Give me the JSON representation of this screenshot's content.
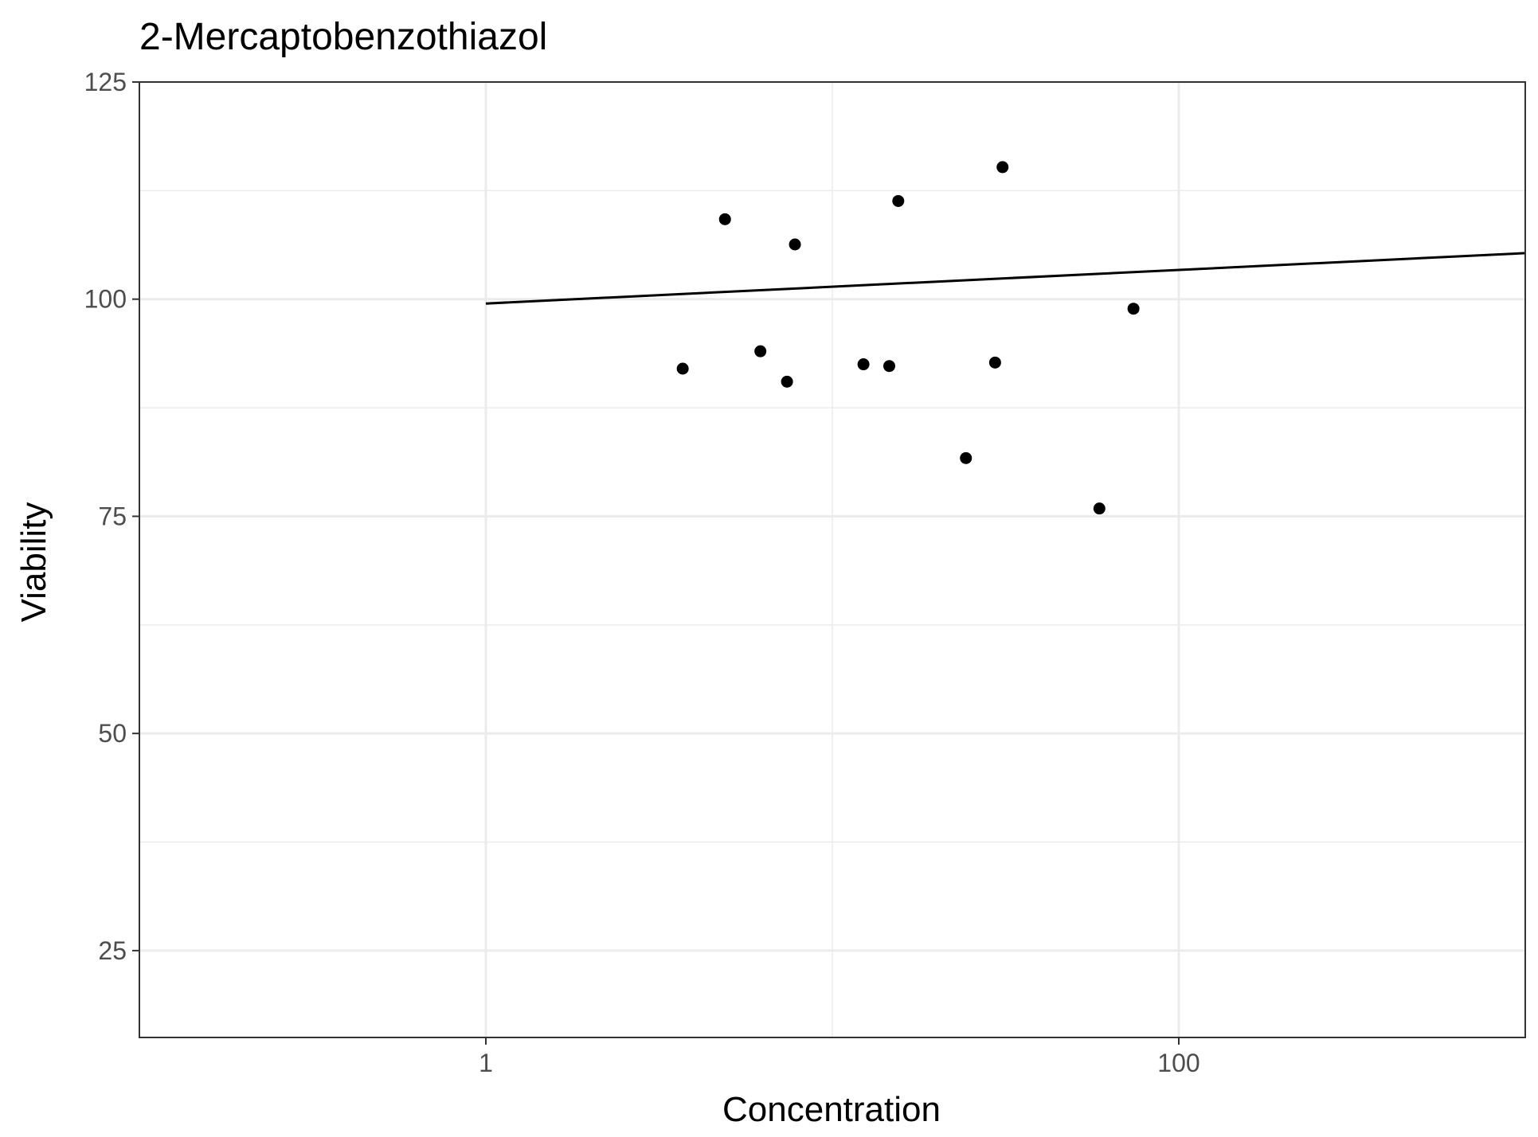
{
  "chart_data": {
    "type": "scatter",
    "title": "2-Mercaptobenzothiazol",
    "xlabel": "Concentration",
    "ylabel": "Viability",
    "x_scale": "log10",
    "xlim": [
      0.1,
      1000
    ],
    "ylim": [
      15,
      125
    ],
    "x_ticks": [
      1,
      100
    ],
    "x_tick_labels": [
      "1",
      "100"
    ],
    "y_ticks": [
      25,
      50,
      75,
      100,
      125
    ],
    "y_tick_labels": [
      "25",
      "50",
      "75",
      "100",
      "125"
    ],
    "grid": true,
    "legend": "none",
    "points": [
      {
        "x": 3.7,
        "y": 92.0
      },
      {
        "x": 4.9,
        "y": 109.2
      },
      {
        "x": 6.2,
        "y": 94.0
      },
      {
        "x": 7.4,
        "y": 90.5
      },
      {
        "x": 7.8,
        "y": 106.3
      },
      {
        "x": 12.3,
        "y": 92.5
      },
      {
        "x": 14.6,
        "y": 92.3
      },
      {
        "x": 15.5,
        "y": 111.3
      },
      {
        "x": 24.3,
        "y": 81.7
      },
      {
        "x": 29.5,
        "y": 92.7
      },
      {
        "x": 31.0,
        "y": 115.2
      },
      {
        "x": 59.0,
        "y": 75.9
      },
      {
        "x": 74.0,
        "y": 98.9
      }
    ],
    "fit_line": [
      {
        "x": 1,
        "y": 99.5
      },
      {
        "x": 1000,
        "y": 105.3
      }
    ],
    "colors": {
      "points": "#000000",
      "line": "#000000",
      "grid": "#ebebeb",
      "panel_border": "#333333",
      "tick_text": "#4d4d4d"
    }
  }
}
